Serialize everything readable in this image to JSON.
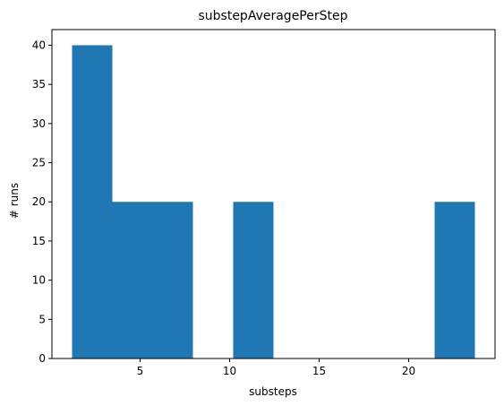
{
  "chart_data": {
    "type": "bar",
    "title": "substepAveragePerStep",
    "xlabel": "substeps",
    "ylabel": "# runs",
    "bins": [
      {
        "x0": 1.2,
        "x1": 3.45,
        "count": 40
      },
      {
        "x0": 3.45,
        "x1": 5.7,
        "count": 20
      },
      {
        "x0": 5.7,
        "x1": 7.95,
        "count": 20
      },
      {
        "x0": 7.95,
        "x1": 10.2,
        "count": 0
      },
      {
        "x0": 10.2,
        "x1": 12.45,
        "count": 20
      },
      {
        "x0": 12.45,
        "x1": 14.7,
        "count": 0
      },
      {
        "x0": 14.7,
        "x1": 16.95,
        "count": 0
      },
      {
        "x0": 16.95,
        "x1": 19.2,
        "count": 0
      },
      {
        "x0": 19.2,
        "x1": 21.45,
        "count": 0
      },
      {
        "x0": 21.45,
        "x1": 23.7,
        "count": 20
      }
    ],
    "xlim": [
      0.075,
      24.825
    ],
    "ylim": [
      0,
      42
    ],
    "xticks": [
      5,
      10,
      15,
      20
    ],
    "yticks": [
      0,
      5,
      10,
      15,
      20,
      25,
      30,
      35,
      40
    ],
    "grid": false,
    "bar_color": "#1f77b4"
  }
}
